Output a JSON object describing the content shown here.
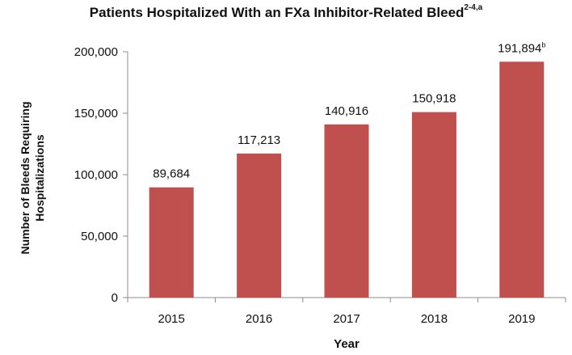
{
  "chart_data": {
    "type": "bar",
    "title": "Patients Hospitalized With an FXa Inhibitor-Related Bleed",
    "title_superscript": "2-4,a",
    "xlabel": "Year",
    "ylabel_lines": [
      "Number of Bleeds Requiring",
      "Hospitalizations"
    ],
    "categories": [
      "2015",
      "2016",
      "2017",
      "2018",
      "2019"
    ],
    "values": [
      89684,
      117213,
      140916,
      150918,
      191894
    ],
    "data_labels": [
      "89,684",
      "117,213",
      "140,916",
      "150,918",
      "191,894"
    ],
    "data_label_superscripts": [
      "",
      "",
      "",
      "",
      "b"
    ],
    "ylim": [
      0,
      200000
    ],
    "yticks": [
      0,
      50000,
      100000,
      150000,
      200000
    ],
    "ytick_labels": [
      "0",
      "50,000",
      "100,000",
      "150,000",
      "200,000"
    ],
    "bar_color": "#c0504d",
    "grid": false,
    "legend": "none"
  }
}
